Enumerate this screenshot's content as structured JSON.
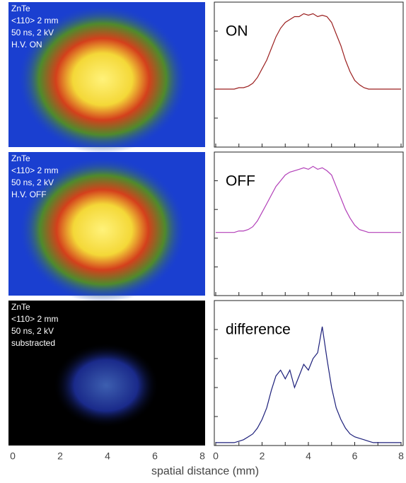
{
  "chart_data": [
    {
      "type": "image",
      "text_lines": [
        "ZnTe",
        "<110> 2 mm",
        "50 ns, 2 kV",
        "H.V. ON"
      ]
    },
    {
      "type": "image",
      "text_lines": [
        "ZnTe",
        "<110> 2 mm",
        "50 ns, 2 kV",
        "H.V. OFF"
      ]
    },
    {
      "type": "image",
      "text_lines": [
        "ZnTe",
        "<110> 2 mm",
        "50 ns, 2 kV",
        "substracted"
      ],
      "xlim": [
        0,
        8
      ],
      "xticks": [
        0,
        2,
        4,
        6,
        8
      ],
      "show_xtick_labels": true
    },
    {
      "type": "line",
      "label": "ON",
      "color": "#9b1f1f",
      "xlim": [
        0,
        8
      ],
      "xticks": [
        0,
        1,
        2,
        3,
        4,
        5,
        6,
        7,
        8
      ],
      "ylim": [
        0,
        5
      ],
      "yticks": [
        1,
        2,
        3,
        4
      ],
      "show_xtick_labels": false,
      "x": [
        0,
        0.2,
        0.4,
        0.6,
        0.8,
        1,
        1.2,
        1.4,
        1.6,
        1.8,
        2,
        2.2,
        2.4,
        2.6,
        2.8,
        3,
        3.2,
        3.4,
        3.6,
        3.8,
        4,
        4.2,
        4.4,
        4.6,
        4.8,
        5,
        5.2,
        5.4,
        5.6,
        5.8,
        6,
        6.2,
        6.4,
        6.6,
        6.8,
        7,
        7.2,
        7.4,
        7.6,
        7.8,
        8
      ],
      "values": [
        2,
        2,
        2,
        2,
        2,
        2.05,
        2.05,
        2.1,
        2.2,
        2.4,
        2.7,
        3,
        3.4,
        3.8,
        4.1,
        4.3,
        4.4,
        4.5,
        4.5,
        4.6,
        4.55,
        4.6,
        4.5,
        4.55,
        4.5,
        4.3,
        3.9,
        3.5,
        3,
        2.6,
        2.3,
        2.15,
        2.05,
        2,
        2,
        2,
        2,
        2,
        2,
        2,
        2
      ]
    },
    {
      "type": "line",
      "label": "OFF",
      "color": "#b23fb8",
      "xlim": [
        0,
        8
      ],
      "xticks": [
        0,
        1,
        2,
        3,
        4,
        5,
        6,
        7,
        8
      ],
      "ylim": [
        0,
        5
      ],
      "yticks": [
        1,
        2,
        3,
        4
      ],
      "show_xtick_labels": false,
      "x": [
        0,
        0.2,
        0.4,
        0.6,
        0.8,
        1,
        1.2,
        1.4,
        1.6,
        1.8,
        2,
        2.2,
        2.4,
        2.6,
        2.8,
        3,
        3.2,
        3.4,
        3.6,
        3.8,
        4,
        4.2,
        4.4,
        4.6,
        4.8,
        5,
        5.2,
        5.4,
        5.6,
        5.8,
        6,
        6.2,
        6.4,
        6.6,
        6.8,
        7,
        7.2,
        7.4,
        7.6,
        7.8,
        8
      ],
      "values": [
        2.2,
        2.2,
        2.2,
        2.2,
        2.2,
        2.25,
        2.25,
        2.3,
        2.4,
        2.6,
        2.9,
        3.2,
        3.5,
        3.8,
        4.0,
        4.2,
        4.3,
        4.35,
        4.4,
        4.45,
        4.4,
        4.5,
        4.4,
        4.45,
        4.35,
        4.2,
        3.8,
        3.4,
        3,
        2.7,
        2.45,
        2.3,
        2.25,
        2.2,
        2.2,
        2.2,
        2.2,
        2.2,
        2.2,
        2.2,
        2.2
      ]
    },
    {
      "type": "line",
      "label": "difference",
      "color": "#1c1f7a",
      "xlim": [
        0,
        8
      ],
      "xticks": [
        0,
        1,
        2,
        3,
        4,
        5,
        6,
        7,
        8
      ],
      "ylim": [
        0,
        5
      ],
      "yticks": [
        1,
        2,
        3,
        4
      ],
      "show_xtick_labels": true,
      "xlabel_ticks": [
        0,
        2,
        4,
        6,
        8
      ],
      "xlabel": "spatial distance (mm)",
      "x": [
        0,
        0.2,
        0.4,
        0.6,
        0.8,
        1,
        1.2,
        1.4,
        1.6,
        1.8,
        2,
        2.2,
        2.4,
        2.6,
        2.8,
        3,
        3.2,
        3.4,
        3.6,
        3.8,
        4,
        4.2,
        4.4,
        4.6,
        4.8,
        5,
        5.2,
        5.4,
        5.6,
        5.8,
        6,
        6.2,
        6.4,
        6.6,
        6.8,
        7,
        7.2,
        7.4,
        7.6,
        7.8,
        8
      ],
      "values": [
        0.1,
        0.1,
        0.1,
        0.1,
        0.1,
        0.15,
        0.2,
        0.3,
        0.4,
        0.6,
        0.9,
        1.3,
        1.9,
        2.4,
        2.6,
        2.3,
        2.6,
        2,
        2.4,
        2.8,
        2.6,
        3,
        3.2,
        4.1,
        3,
        2,
        1.3,
        0.9,
        0.6,
        0.4,
        0.3,
        0.25,
        0.2,
        0.15,
        0.1,
        0.1,
        0.1,
        0.1,
        0.1,
        0.1,
        0.1
      ]
    }
  ]
}
